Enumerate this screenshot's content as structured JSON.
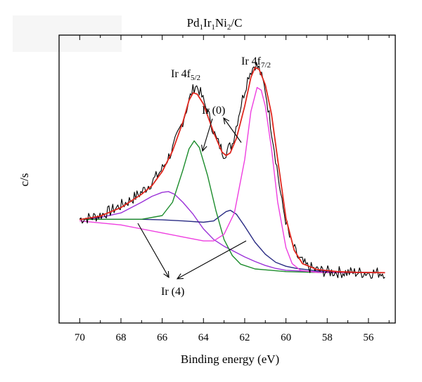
{
  "chart_data": {
    "type": "line",
    "title": "Pd₁Ir₁Ni₂/C",
    "title_parts": {
      "pd": "Pd",
      "s1": "1",
      "ir": "Ir",
      "s2": "1",
      "ni": "Ni",
      "s3": "2",
      "tail": "/C"
    },
    "xlabel": "Binding energy (eV)",
    "ylabel": "c/s",
    "x_reversed": true,
    "xlim": [
      71,
      54.7
    ],
    "ylim": [
      0,
      1
    ],
    "x_ticks": [
      "70",
      "68",
      "66",
      "64",
      "62",
      "60",
      "58",
      "56"
    ],
    "grid": false,
    "legend": "none",
    "colors": {
      "raw": "#000000",
      "envelope": "#e0281f",
      "ir0_5": "#1c8c2c",
      "ir0_7": "#ee3ee0",
      "ir4_a": "#9b32d8",
      "ir4_b": "#2a2c84",
      "arrow": "#000000"
    },
    "annotations": {
      "ir_4f52": {
        "base": "Ir 4f",
        "sub": "5/2"
      },
      "ir_4f72": {
        "base": "Ir 4f",
        "sub": "7/2"
      },
      "ir0": "Ir (0)",
      "ir4": "Ir (4)"
    },
    "series": [
      {
        "key": "raw",
        "points": [
          [
            70,
            0.338
          ],
          [
            69.5,
            0.342
          ],
          [
            69,
            0.352
          ],
          [
            68.5,
            0.368
          ],
          [
            68,
            0.388
          ],
          [
            67.5,
            0.41
          ],
          [
            67,
            0.438
          ],
          [
            66.5,
            0.475
          ],
          [
            66,
            0.525
          ],
          [
            65.5,
            0.598
          ],
          [
            65,
            0.705
          ],
          [
            64.6,
            0.805
          ],
          [
            64.4,
            0.84
          ],
          [
            64.2,
            0.82
          ],
          [
            63.8,
            0.74
          ],
          [
            63.4,
            0.64
          ],
          [
            63,
            0.58
          ],
          [
            62.6,
            0.62
          ],
          [
            62.2,
            0.76
          ],
          [
            61.8,
            0.88
          ],
          [
            61.5,
            0.918
          ],
          [
            61.3,
            0.9
          ],
          [
            61,
            0.82
          ],
          [
            60.6,
            0.62
          ],
          [
            60.2,
            0.4
          ],
          [
            59.8,
            0.26
          ],
          [
            59.4,
            0.19
          ],
          [
            59,
            0.16
          ],
          [
            58.5,
            0.145
          ],
          [
            58,
            0.14
          ],
          [
            57,
            0.137
          ],
          [
            56,
            0.136
          ],
          [
            55.2,
            0.136
          ]
        ]
      },
      {
        "key": "envelope",
        "points": [
          [
            70,
            0.335
          ],
          [
            69,
            0.348
          ],
          [
            68,
            0.38
          ],
          [
            67,
            0.43
          ],
          [
            66.5,
            0.462
          ],
          [
            66,
            0.515
          ],
          [
            65.5,
            0.592
          ],
          [
            65,
            0.7
          ],
          [
            64.7,
            0.782
          ],
          [
            64.5,
            0.81
          ],
          [
            64.3,
            0.805
          ],
          [
            64,
            0.768
          ],
          [
            63.5,
            0.66
          ],
          [
            63.1,
            0.588
          ],
          [
            62.9,
            0.575
          ],
          [
            62.7,
            0.585
          ],
          [
            62.4,
            0.64
          ],
          [
            62,
            0.76
          ],
          [
            61.7,
            0.868
          ],
          [
            61.5,
            0.905
          ],
          [
            61.3,
            0.898
          ],
          [
            61,
            0.84
          ],
          [
            60.7,
            0.73
          ],
          [
            60.4,
            0.56
          ],
          [
            60,
            0.34
          ],
          [
            59.6,
            0.22
          ],
          [
            59.2,
            0.17
          ],
          [
            58.5,
            0.148
          ],
          [
            57.5,
            0.14
          ],
          [
            56.5,
            0.137
          ],
          [
            55.2,
            0.136
          ]
        ]
      },
      {
        "key": "ir0_5",
        "points": [
          [
            70,
            0.336
          ],
          [
            67,
            0.336
          ],
          [
            66,
            0.35
          ],
          [
            65.5,
            0.4
          ],
          [
            65,
            0.52
          ],
          [
            64.7,
            0.6
          ],
          [
            64.45,
            0.63
          ],
          [
            64.2,
            0.605
          ],
          [
            63.8,
            0.5
          ],
          [
            63.4,
            0.37
          ],
          [
            63,
            0.26
          ],
          [
            62.6,
            0.2
          ],
          [
            62.2,
            0.168
          ],
          [
            61.5,
            0.15
          ],
          [
            60,
            0.14
          ],
          [
            58,
            0.136
          ],
          [
            55.2,
            0.136
          ]
        ]
      },
      {
        "key": "ir0_7",
        "points": [
          [
            70,
            0.33
          ],
          [
            68,
            0.315
          ],
          [
            67,
            0.3
          ],
          [
            66,
            0.285
          ],
          [
            65,
            0.27
          ],
          [
            64,
            0.255
          ],
          [
            63.5,
            0.255
          ],
          [
            63,
            0.28
          ],
          [
            62.5,
            0.36
          ],
          [
            62,
            0.56
          ],
          [
            61.7,
            0.74
          ],
          [
            61.4,
            0.83
          ],
          [
            61.2,
            0.82
          ],
          [
            61,
            0.76
          ],
          [
            60.7,
            0.6
          ],
          [
            60.4,
            0.4
          ],
          [
            60,
            0.23
          ],
          [
            59.7,
            0.17
          ],
          [
            59.3,
            0.145
          ],
          [
            58.5,
            0.137
          ],
          [
            55.2,
            0.136
          ]
        ]
      },
      {
        "key": "ir4_a",
        "points": [
          [
            70,
            0.335
          ],
          [
            69,
            0.343
          ],
          [
            68,
            0.36
          ],
          [
            67,
            0.4
          ],
          [
            66.5,
            0.422
          ],
          [
            66,
            0.437
          ],
          [
            65.7,
            0.44
          ],
          [
            65.4,
            0.43
          ],
          [
            65,
            0.4
          ],
          [
            64.5,
            0.355
          ],
          [
            64,
            0.3
          ],
          [
            63.5,
            0.26
          ],
          [
            63,
            0.235
          ],
          [
            62.5,
            0.215
          ],
          [
            62,
            0.195
          ],
          [
            61.5,
            0.178
          ],
          [
            61,
            0.163
          ],
          [
            60.5,
            0.152
          ],
          [
            60,
            0.145
          ],
          [
            58,
            0.138
          ],
          [
            55.2,
            0.136
          ]
        ]
      },
      {
        "key": "ir4_b",
        "points": [
          [
            70,
            0.336
          ],
          [
            67,
            0.336
          ],
          [
            66,
            0.334
          ],
          [
            65,
            0.33
          ],
          [
            64,
            0.325
          ],
          [
            63.5,
            0.33
          ],
          [
            63.2,
            0.348
          ],
          [
            62.9,
            0.365
          ],
          [
            62.7,
            0.37
          ],
          [
            62.4,
            0.355
          ],
          [
            62,
            0.31
          ],
          [
            61.5,
            0.25
          ],
          [
            61,
            0.205
          ],
          [
            60.5,
            0.175
          ],
          [
            60,
            0.16
          ],
          [
            59.5,
            0.152
          ],
          [
            58.5,
            0.143
          ],
          [
            57,
            0.138
          ],
          [
            55.2,
            0.136
          ]
        ]
      }
    ]
  }
}
